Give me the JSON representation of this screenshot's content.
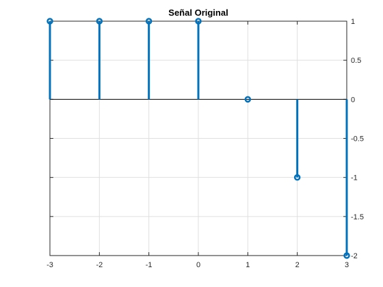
{
  "chart_data": {
    "type": "stem",
    "title": "Señal Original",
    "xlabel": "",
    "ylabel": "",
    "x": [
      -3,
      -2,
      -1,
      0,
      1,
      2,
      3
    ],
    "y": [
      1,
      1,
      1,
      1,
      0,
      -1,
      -2
    ],
    "xlim": [
      -3,
      3
    ],
    "ylim": [
      -2,
      1
    ],
    "xticks": [
      -3,
      -2,
      -1,
      0,
      1,
      2,
      3
    ],
    "yticks": [
      -2,
      -1.5,
      -1,
      -0.5,
      0,
      0.5,
      1
    ],
    "y_axis_location": "right",
    "grid": true,
    "stem_color": "#0072BD",
    "baseline_color": "#000000",
    "grid_color": "#dfdfdf",
    "axis_color": "#262626"
  }
}
